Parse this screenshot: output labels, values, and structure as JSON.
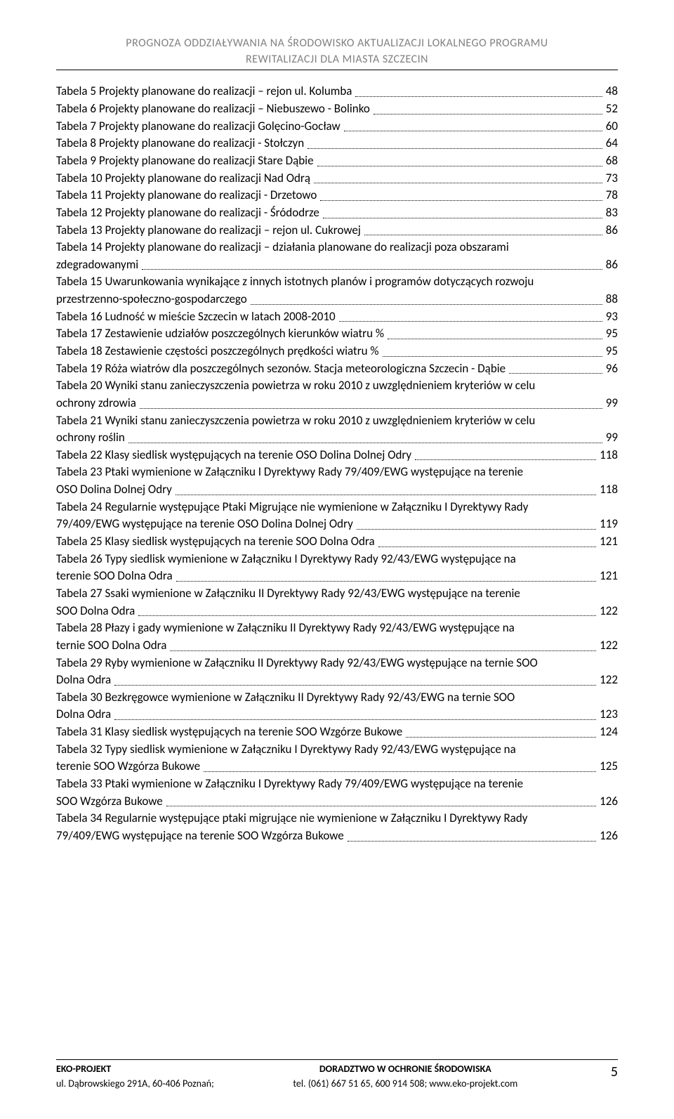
{
  "header": {
    "line1": "PROGNOZA ODDZIAŁYWANIA NA ŚRODOWISKO AKTUALIZACJI LOKALNEGO PROGRAMU",
    "line2": "REWITALIZACJI DLA MIASTA SZCZECIN"
  },
  "toc": [
    {
      "text": "Tabela 5   Projekty planowane do realizacji – rejon ul. Kolumba",
      "page": "48"
    },
    {
      "text": "Tabela 6   Projekty planowane do realizacji – Niebuszewo - Bolinko",
      "page": "52"
    },
    {
      "text": "Tabela 7   Projekty planowane do realizacji Golęcino-Gocław",
      "page": "60"
    },
    {
      "text": "Tabela 8   Projekty planowane do realizacji - Stołczyn",
      "page": "64"
    },
    {
      "text": "Tabela 9   Projekty planowane do realizacji Stare Dąbie",
      "page": "68"
    },
    {
      "text": "Tabela 10   Projekty planowane do realizacji Nad Odrą",
      "page": "73"
    },
    {
      "text": "Tabela 11   Projekty planowane do realizacji - Drzetowo",
      "page": "78"
    },
    {
      "text": "Tabela 12   Projekty planowane do realizacji - Śródodrze",
      "page": "83"
    },
    {
      "text": "Tabela 13   Projekty planowane do realizacji – rejon ul. Cukrowej",
      "page": "86"
    },
    {
      "multi": true,
      "pre": "Tabela 14   Projekty planowane do realizacji – działania planowane do realizacji poza obszarami",
      "last": "zdegradowanymi",
      "page": "86"
    },
    {
      "multi": true,
      "pre": "Tabela 15 Uwarunkowania wynikające z innych istotnych planów i programów dotyczących rozwoju",
      "last": "przestrzenno-społeczno-gospodarczego",
      "page": "88"
    },
    {
      "text": "Tabela 16   Ludność w mieście Szczecin w latach 2008-2010",
      "page": "93"
    },
    {
      "text": "Tabela 17   Zestawienie udziałów poszczególnych kierunków wiatru %",
      "page": "95"
    },
    {
      "text": "Tabela 18   Zestawienie częstości poszczególnych prędkości wiatru %",
      "page": "95"
    },
    {
      "text": "Tabela 19   Róża wiatrów dla poszczególnych sezonów. Stacja meteorologiczna Szczecin - Dąbie",
      "page": "96"
    },
    {
      "multi": true,
      "pre": "Tabela 20   Wyniki stanu zanieczyszczenia powietrza w roku 2010 z uwzględnieniem kryteriów w celu",
      "last": "ochrony zdrowia",
      "page": "99"
    },
    {
      "multi": true,
      "pre": "Tabela 21 Wyniki stanu zanieczyszczenia powietrza w roku 2010 z uwzględnieniem kryteriów w celu",
      "last": "ochrony roślin",
      "page": "99"
    },
    {
      "text": "Tabela 22   Klasy siedlisk występujących na terenie OSO Dolina Dolnej Odry",
      "page": "118"
    },
    {
      "multi": true,
      "pre": "Tabela 23   Ptaki wymienione w Załączniku I Dyrektywy Rady 79/409/EWG występujące na terenie",
      "last": "OSO Dolina Dolnej Odry",
      "page": "118"
    },
    {
      "multi": true,
      "pre": "Tabela 24   Regularnie występujące Ptaki Migrujące nie wymienione w Załączniku I Dyrektywy Rady",
      "last": "79/409/EWG występujące na terenie OSO Dolina Dolnej Odry",
      "page": "119"
    },
    {
      "text": "Tabela 25   Klasy siedlisk występujących na terenie SOO Dolna Odra",
      "page": "121"
    },
    {
      "multi": true,
      "pre": "Tabela 26   Typy siedlisk wymienione w Załączniku I Dyrektywy Rady 92/43/EWG występujące na",
      "last": "terenie SOO Dolna Odra",
      "page": "121"
    },
    {
      "multi": true,
      "pre": "Tabela 27   Ssaki wymienione w Załączniku II Dyrektywy Rady 92/43/EWG występujące na terenie",
      "last": "SOO Dolna Odra",
      "page": "122"
    },
    {
      "multi": true,
      "pre": "Tabela 28   Płazy i gady wymienione w Załączniku II Dyrektywy Rady 92/43/EWG występujące na",
      "last": "ternie SOO Dolna Odra",
      "page": "122"
    },
    {
      "multi": true,
      "pre": "Tabela 29   Ryby wymienione w Załączniku II Dyrektywy Rady 92/43/EWG występujące na ternie SOO",
      "last": "Dolna Odra",
      "page": "122"
    },
    {
      "multi": true,
      "pre": "Tabela 30   Bezkręgowce wymienione w Załączniku II Dyrektywy Rady 92/43/EWG na ternie SOO",
      "last": "Dolna Odra",
      "page": "123"
    },
    {
      "text": "Tabela 31    Klasy siedlisk występujących na terenie SOO Wzgórze Bukowe",
      "page": "124"
    },
    {
      "multi": true,
      "pre": "Tabela 32   Typy siedlisk wymienione w Załączniku I Dyrektywy Rady 92/43/EWG występujące na",
      "last": "terenie SOO Wzgórza Bukowe",
      "page": "125"
    },
    {
      "multi": true,
      "pre": "Tabela 33   Ptaki wymienione w Załączniku I Dyrektywy Rady 79/409/EWG występujące na terenie",
      "last": "SOO Wzgórza Bukowe",
      "page": "126"
    },
    {
      "multi": true,
      "pre": "Tabela 34   Regularnie występujące ptaki migrujące nie wymienione w Załączniku I Dyrektywy Rady",
      "last": "79/409/EWG występujące na terenie SOO Wzgórza Bukowe",
      "page": "126"
    }
  ],
  "footer": {
    "left_bold": "EKO-PROJEKT",
    "left_line2": "ul. Dąbrowskiego 291A, 60-406 Poznań;",
    "center_bold": "DORADZTWO W OCHRONIE ŚRODOWISKA",
    "center_line2": "tel. (061) 667 51 65,  600 914 508; www.eko-projekt.com",
    "page_number": "5"
  }
}
